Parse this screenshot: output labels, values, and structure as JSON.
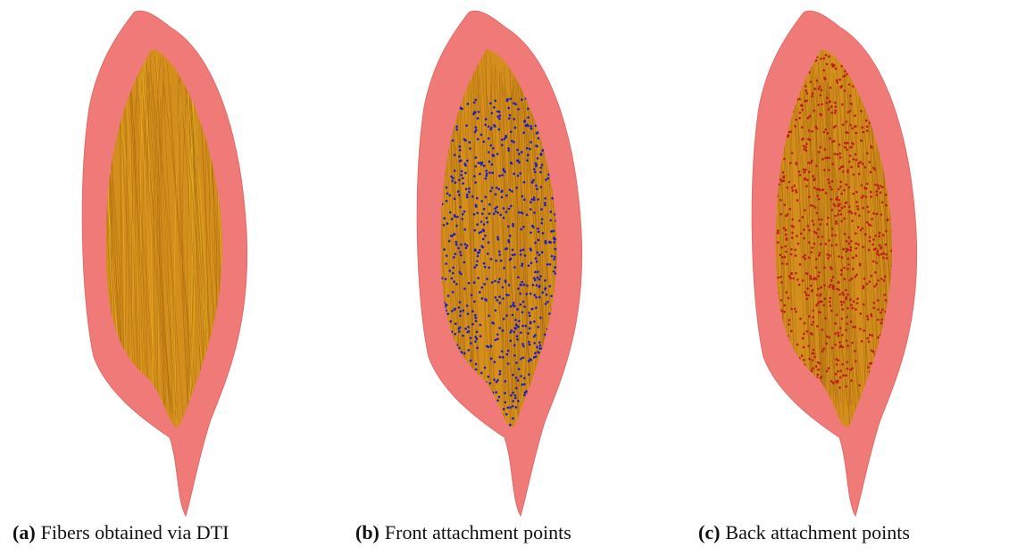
{
  "figures": [
    {
      "label": "(a)",
      "caption": "Fibers obtained via DTI"
    },
    {
      "label": "(b)",
      "caption": "Front attachment points"
    },
    {
      "label": "(c)",
      "caption": "Back attachment points"
    }
  ]
}
